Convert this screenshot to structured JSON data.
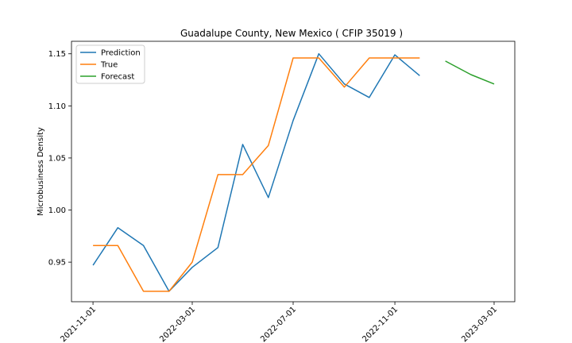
{
  "chart_data": {
    "type": "line",
    "title": "Guadalupe County, New Mexico ( CFIP 35019 )",
    "xlabel": "",
    "ylabel": "Microbusiness Density",
    "ylim": [
      0.912,
      1.162
    ],
    "xlim": [
      "2021-10-06",
      "2023-03-26"
    ],
    "y_ticks": [
      0.95,
      1.0,
      1.05,
      1.1,
      1.15
    ],
    "y_tick_labels": [
      "0.95",
      "1.00",
      "1.05",
      "1.10",
      "1.15"
    ],
    "x_ticks": [
      "2021-11-01",
      "2022-03-01",
      "2022-07-01",
      "2022-11-01",
      "2023-03-01"
    ],
    "legend_position": "top-left",
    "grid": false,
    "series": [
      {
        "name": "Prediction",
        "color": "#1f77b4",
        "x": [
          "2021-11-01",
          "2021-12-01",
          "2022-01-01",
          "2022-02-01",
          "2022-03-01",
          "2022-04-01",
          "2022-05-01",
          "2022-06-01",
          "2022-07-01",
          "2022-08-01",
          "2022-09-01",
          "2022-10-01",
          "2022-11-01",
          "2022-12-01"
        ],
        "values": [
          0.947,
          0.983,
          0.966,
          0.922,
          0.945,
          0.964,
          1.063,
          1.012,
          1.086,
          1.15,
          1.121,
          1.108,
          1.149,
          1.129
        ]
      },
      {
        "name": "True",
        "color": "#ff7f0e",
        "x": [
          "2021-11-01",
          "2021-12-01",
          "2022-01-01",
          "2022-02-01",
          "2022-03-01",
          "2022-04-01",
          "2022-05-01",
          "2022-06-01",
          "2022-07-01",
          "2022-08-01",
          "2022-09-01",
          "2022-10-01",
          "2022-11-01",
          "2022-12-01"
        ],
        "values": [
          0.966,
          0.966,
          0.922,
          0.922,
          0.95,
          1.034,
          1.034,
          1.062,
          1.146,
          1.146,
          1.118,
          1.146,
          1.146,
          1.146
        ]
      },
      {
        "name": "Forecast",
        "color": "#2ca02c",
        "x": [
          "2023-01-01",
          "2023-02-01",
          "2023-03-01"
        ],
        "values": [
          1.143,
          1.13,
          1.121
        ]
      }
    ]
  }
}
